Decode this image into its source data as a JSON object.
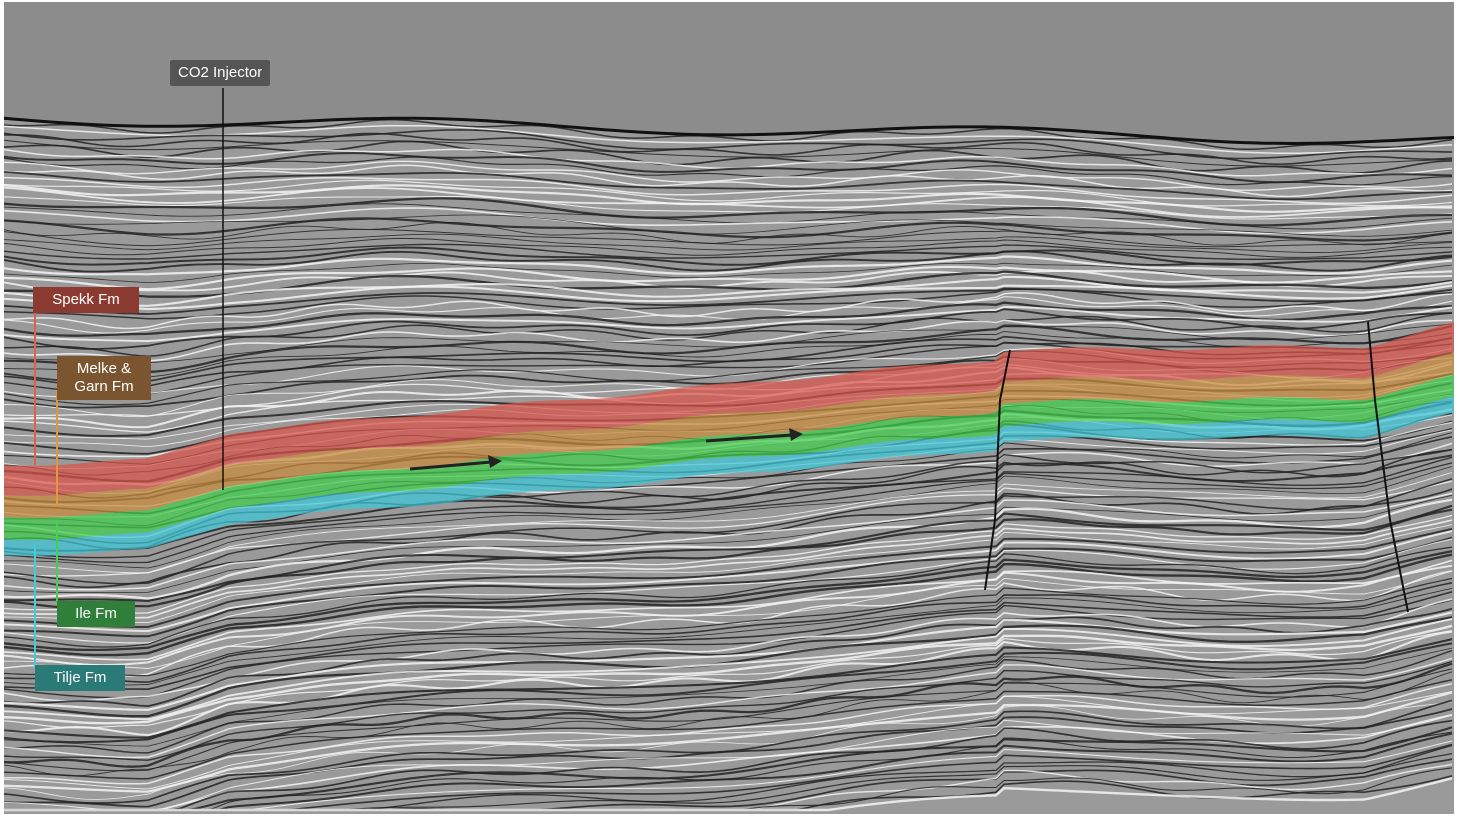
{
  "labels": {
    "injector": "CO2 Injector",
    "spekk": "Spekk Fm",
    "melke": "Melke & Garn Fm",
    "ile": "Ile Fm",
    "tilje": "Tilje Fm"
  },
  "colors": {
    "sky": "#8c8c8c",
    "seismic": "#9a9a9a",
    "spekk": "#d9524a",
    "melke": "#c98a3c",
    "ile": "#3fcf4a",
    "tilje": "#3cc8d8",
    "injector_box": "#555555",
    "spekk_box": "#8a3a30",
    "melke_box": "#7a5530",
    "ile_box": "#2f7f3a",
    "tilje_box": "#2a7a78"
  }
}
